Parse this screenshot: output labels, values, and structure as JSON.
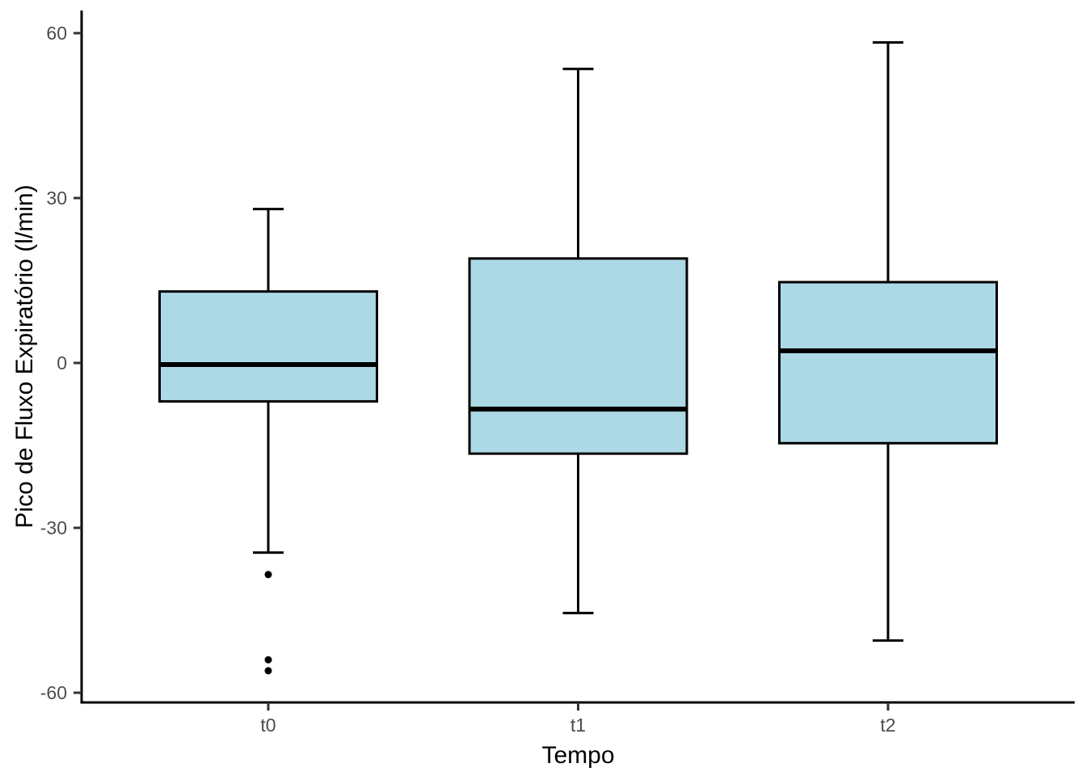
{
  "figure": {
    "background": "#FFFFFF"
  },
  "chart_data": {
    "type": "boxplot",
    "title": "",
    "xlabel": "Tempo",
    "ylabel": "Pico de Fluxo Expiratório (l/min)",
    "categories": [
      "t0",
      "t1",
      "t2"
    ],
    "yticks": [
      60,
      30,
      0,
      -30,
      -60
    ],
    "ylim": [
      -61.8,
      64
    ],
    "grid": false,
    "legend": "none",
    "colors": {
      "box_fill": "#ADD8E6",
      "box_stroke": "#000000",
      "median_stroke": "#000000",
      "whisker_stroke": "#000000",
      "outlier_fill": "#000000",
      "axis_line": "#000000",
      "tick_mark": "#333333",
      "tick_label": "#4D4D4D",
      "axis_title": "#000000"
    },
    "series": [
      {
        "category": "t0",
        "whisker_low": -34.5,
        "q1": -7,
        "median": -0.3,
        "q3": 13,
        "whisker_high": 28,
        "outliers": [
          -38.5,
          -54,
          -56
        ]
      },
      {
        "category": "t1",
        "whisker_low": -45.5,
        "q1": -16.5,
        "median": -8.4,
        "q3": 19,
        "whisker_high": 53.5,
        "outliers": []
      },
      {
        "category": "t2",
        "whisker_low": -50.5,
        "q1": -14.6,
        "median": 2.2,
        "q3": 14.7,
        "whisker_high": 58.3,
        "outliers": []
      }
    ]
  }
}
